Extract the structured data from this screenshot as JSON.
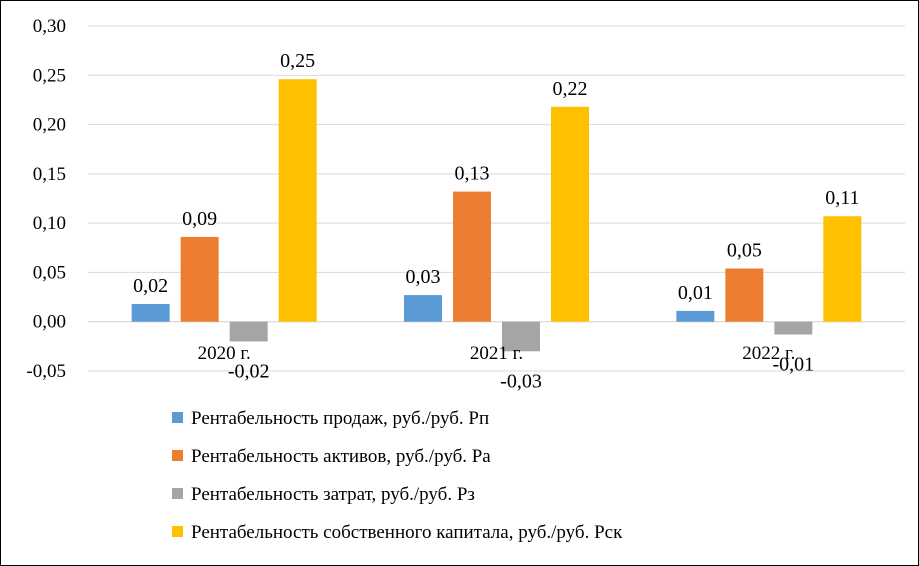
{
  "chart_data": {
    "type": "bar",
    "categories": [
      "2020 г.",
      "2021 г.",
      "2022 г."
    ],
    "series": [
      {
        "name": "Рентабельность продаж, руб./руб. Рп",
        "values": [
          0.018,
          0.027,
          0.011
        ],
        "labels": [
          "0,02",
          "0,03",
          "0,01"
        ],
        "color": "#5B9BD5"
      },
      {
        "name": "Рентабельность активов, руб./руб. Ра",
        "values": [
          0.086,
          0.132,
          0.054
        ],
        "labels": [
          "0,09",
          "0,13",
          "0,05"
        ],
        "color": "#ED7D31"
      },
      {
        "name": "Рентабельность затрат, руб./руб. Рз",
        "values": [
          -0.02,
          -0.03,
          -0.013
        ],
        "labels": [
          "-0,02",
          "-0,03",
          "-0,01"
        ],
        "color": "#A5A5A5"
      },
      {
        "name": "Рентабельность собственного капитала, руб./руб. Рск",
        "values": [
          0.246,
          0.218,
          0.107
        ],
        "labels": [
          "0,25",
          "0,22",
          "0,11"
        ],
        "color": "#FFC000"
      }
    ],
    "yticks": [
      "0,30",
      "0,25",
      "0,20",
      "0,15",
      "0,10",
      "0,05",
      "0,00",
      "-0,05"
    ],
    "ytick_values": [
      0.3,
      0.25,
      0.2,
      0.15,
      0.1,
      0.05,
      0.0,
      -0.05
    ],
    "ylim": [
      -0.05,
      0.3
    ],
    "grid": true,
    "legend_position": "bottom",
    "title": "",
    "xlabel": "",
    "ylabel": ""
  }
}
